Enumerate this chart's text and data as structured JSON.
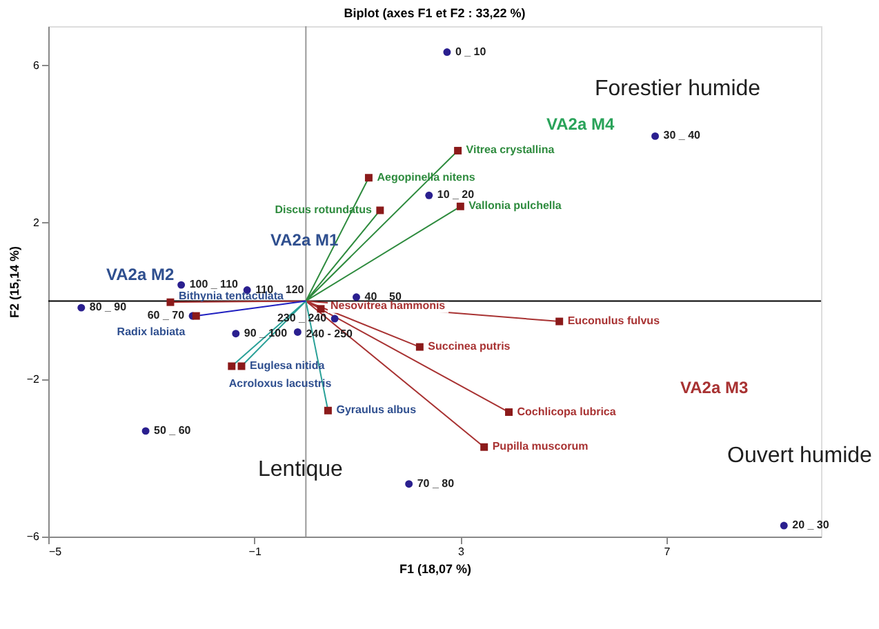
{
  "chart_data": {
    "type": "scatter",
    "title": "Biplot (axes F1 et F2 : 33,22 %)",
    "xlabel": "F1 (18,07 %)",
    "ylabel": "F2 (15,14 %)",
    "xlim": [
      -5,
      10
    ],
    "ylim": [
      -6,
      7
    ],
    "xticks": [
      -5,
      -1,
      3,
      7
    ],
    "yticks": [
      -6,
      -2,
      2,
      6
    ],
    "grid": false,
    "ref_lines": [
      {
        "axis": "y",
        "value": 0,
        "color": "#000000"
      },
      {
        "axis": "x",
        "value": 0,
        "color": "#999999"
      }
    ],
    "series": [
      {
        "type": "line",
        "color": "#2e8b3e",
        "x": [
          0,
          2.95,
          0,
          1.22,
          0,
          1.44,
          0,
          3.0
        ],
        "values": [
          0,
          3.83,
          0,
          3.14,
          0,
          2.31,
          0,
          2.41
        ]
      },
      {
        "type": "line",
        "color": "#a83232",
        "x": [
          0,
          4.92,
          0,
          2.21,
          0,
          3.94,
          0,
          3.46,
          0,
          0.29,
          0,
          -2.63
        ],
        "values": [
          0,
          -0.52,
          0,
          -1.17,
          0,
          -2.83,
          0,
          -3.72,
          0,
          -0.2,
          0,
          -0.03
        ]
      },
      {
        "type": "line",
        "color": "#2aa198",
        "x": [
          0,
          0.43,
          0,
          -1.25,
          0,
          -1.44
        ],
        "values": [
          0,
          -2.79,
          0,
          -1.66,
          0,
          -1.66
        ]
      },
      {
        "type": "line",
        "color": "#2020c0",
        "x": [
          0,
          -2.13
        ],
        "values": [
          0,
          -0.38
        ]
      },
      {
        "marker": "circle",
        "color": "#2a1f8f",
        "x": [
          2.74,
          6.78,
          2.39,
          -2.42,
          -4.36,
          -2.2,
          0.98,
          -1.36,
          -0.16,
          0.56,
          -3.11,
          2.0,
          9.28,
          -1.14
        ],
        "values": [
          6.34,
          4.2,
          2.69,
          0.41,
          -0.17,
          -0.38,
          0.1,
          -0.83,
          -0.79,
          -0.45,
          -3.31,
          -4.66,
          -5.72,
          0.28
        ],
        "value_labels": [
          "0 _ 10",
          "30 _ 40",
          "10 _ 20",
          "100 _ 110",
          "80 _ 90",
          "60 _ 70",
          "40 _ 50",
          "90 _ 100",
          "240 - 250",
          "230 _ 240",
          "50 _ 60",
          "70 _ 80",
          "20 _ 30",
          "110 _ 120"
        ]
      },
      {
        "marker": "square",
        "color": "#8b1a1a",
        "x": [
          2.95,
          1.22,
          1.44,
          3.0
        ],
        "values": [
          3.83,
          3.14,
          2.31,
          2.41
        ],
        "value_labels": [
          "Vitrea crystallina",
          "Aegopinella nitens",
          "Discus rotundatus",
          "Vallonia pulchella"
        ]
      },
      {
        "marker": "square",
        "color": "#8b1a1a",
        "x": [
          4.92,
          2.21,
          3.94,
          3.46,
          0.29
        ],
        "values": [
          -0.52,
          -1.17,
          -2.83,
          -3.72,
          -0.2
        ],
        "value_labels": [
          "Euconulus fulvus",
          "Succinea putris",
          "Cochlicopa lubrica",
          "Pupilla muscorum",
          "Nesovitrea hammonis"
        ]
      },
      {
        "marker": "square",
        "color": "#8b1a1a",
        "x": [
          0.43,
          -1.25,
          -1.44,
          -2.13,
          -2.63
        ],
        "values": [
          -2.79,
          -1.66,
          -1.66,
          -0.38,
          -0.03
        ],
        "value_labels": [
          "Gyraulus albus",
          "Euglesa nitida",
          "Acroloxus lacustris",
          "Radix labiata",
          "Bithynia tentaculata"
        ]
      }
    ],
    "annotations": [
      "VA2a M1",
      "VA2a M2",
      "VA2a M3",
      "VA2a M4",
      "Forestier humide",
      "Lentique",
      "Ouvert humide"
    ]
  }
}
